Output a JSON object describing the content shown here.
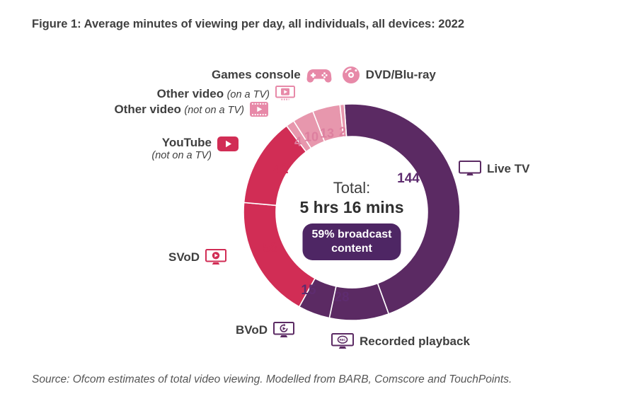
{
  "figure": {
    "title": "Figure 1: Average minutes of viewing per day, all individuals, all devices: 2022",
    "source": "Source: Ofcom estimates of total video viewing. Modelled from BARB, Comscore and TouchPoints."
  },
  "center": {
    "total_label": "Total:",
    "total_value": "5 hrs 16 mins",
    "badge_line1": "59% broadcast",
    "badge_line2": "content"
  },
  "labels": {
    "games_console": "Games console",
    "dvd_bluray": "DVD/Blu-ray",
    "other_on_tv": {
      "name": "Other video",
      "qualifier": "(on a TV)"
    },
    "other_not_on_tv": {
      "name": "Other video",
      "qualifier": "(not on a TV)"
    },
    "youtube": {
      "name": "YouTube",
      "qualifier": "(not on a TV)"
    },
    "svod": "SVoD",
    "bvod": "BVoD",
    "recorded_playback": "Recorded playback",
    "live_tv": "Live TV"
  },
  "colors": {
    "broadcast_purple": "#5b2a63",
    "badge_purple": "#4e2664",
    "vod_crimson": "#d12d55",
    "other_pink": "#e797ad",
    "icon_pink": "#e789a8",
    "label_gray": "#3f3f3f"
  },
  "chart_data": {
    "type": "pie",
    "variant": "donut",
    "title": "Average minutes of viewing per day, all individuals, all devices: 2022",
    "units": "minutes per day",
    "total_minutes": 316,
    "total_label": "5 hrs 16 mins",
    "broadcast_share_label": "59% broadcast content",
    "rotation_deg": -4,
    "direction": "clockwise-from-top",
    "segments": [
      {
        "id": "live-tv",
        "label": "Live TV",
        "value": 144,
        "color": "#5b2a63"
      },
      {
        "id": "recorded-playback",
        "label": "Recorded playback",
        "value": 28,
        "color": "#5b2a63"
      },
      {
        "id": "bvod",
        "label": "BVoD",
        "value": 15,
        "color": "#5b2a63"
      },
      {
        "id": "svod",
        "label": "SVoD",
        "value": 58,
        "color": "#d12d55"
      },
      {
        "id": "youtube-not-on-tv",
        "label": "YouTube (not on a TV)",
        "value": 42,
        "color": "#d12d55"
      },
      {
        "id": "other-video-not-on-tv",
        "label": "Other video (not on a TV)",
        "value": 4,
        "color": "#e797ad"
      },
      {
        "id": "other-video-on-tv",
        "label": "Other video (on a TV)",
        "value": 10,
        "color": "#e797ad"
      },
      {
        "id": "games-console",
        "label": "Games console",
        "value": 13,
        "color": "#e797ad"
      },
      {
        "id": "dvd-blu-ray",
        "label": "DVD/Blu-ray",
        "value": 2,
        "color": "#e797ad"
      }
    ]
  }
}
